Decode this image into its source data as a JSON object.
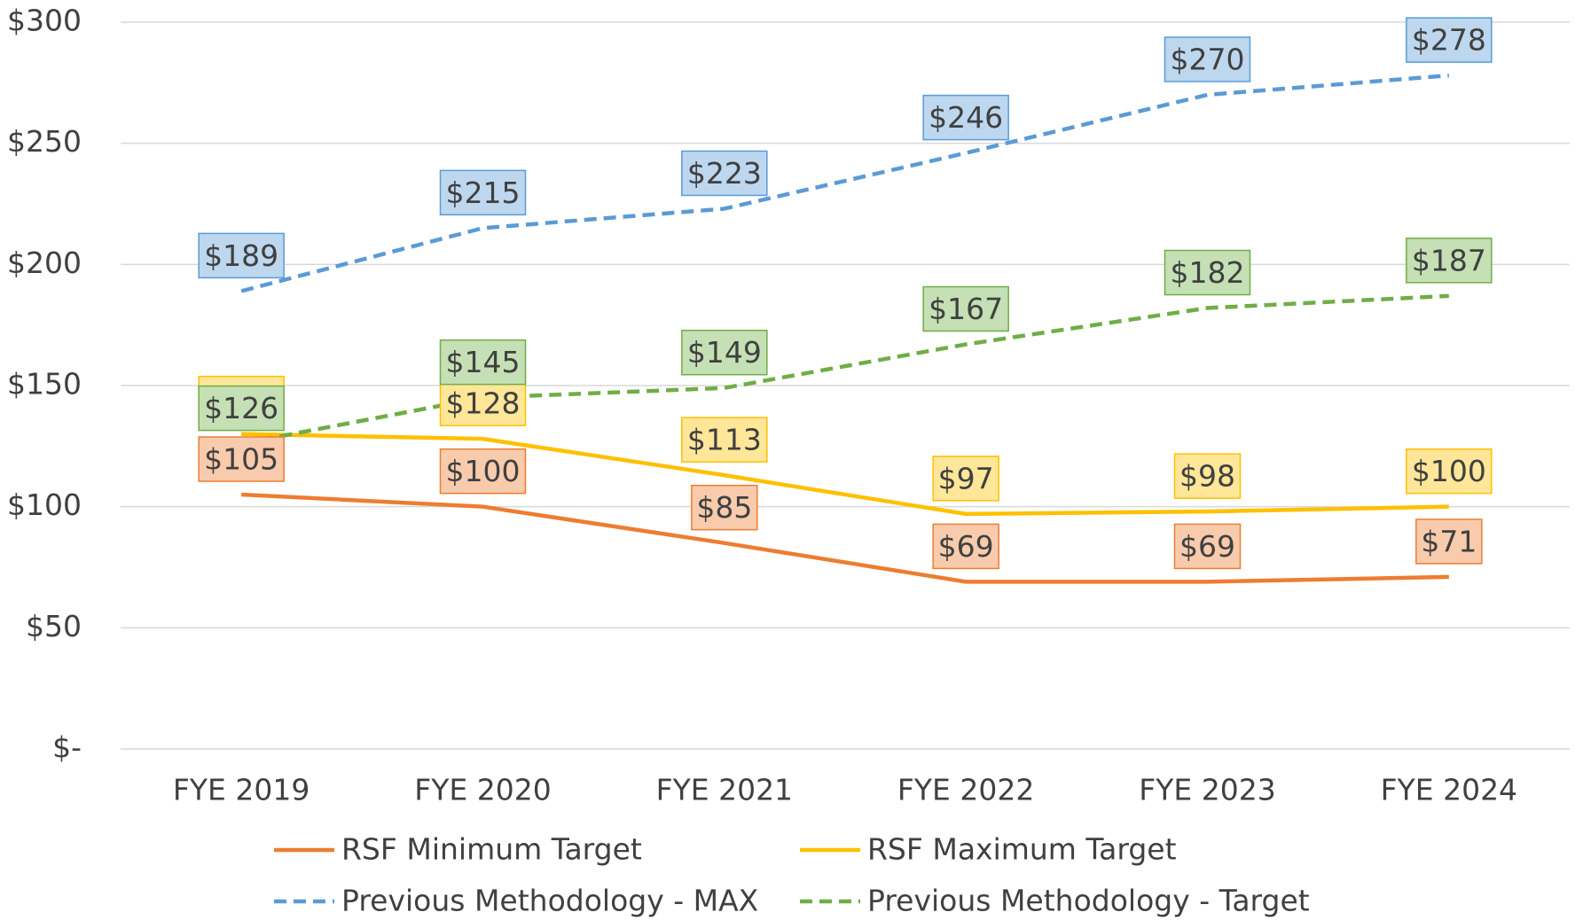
{
  "chart_data": {
    "type": "line",
    "categories": [
      "FYE 2019",
      "FYE 2020",
      "FYE 2021",
      "FYE 2022",
      "FYE 2023",
      "FYE 2024"
    ],
    "series": [
      {
        "name": "RSF Minimum Target",
        "color": "#ed7d31",
        "label_fill": "#f8cbad",
        "dashed": false,
        "values": [
          105,
          100,
          85,
          69,
          69,
          71
        ],
        "value_labels": [
          "$105",
          "$100",
          "$85",
          "$69",
          "$69",
          "$71"
        ]
      },
      {
        "name": "RSF Maximum Target",
        "color": "#ffc000",
        "label_fill": "#ffe699",
        "dashed": false,
        "values": [
          130,
          128,
          113,
          97,
          98,
          100
        ],
        "value_labels": [
          "$130",
          "$128",
          "$113",
          "$97",
          "$98",
          "$100"
        ]
      },
      {
        "name": "Previous Methodology - MAX",
        "color": "#5b9bd5",
        "label_fill": "#bdd7ee",
        "dashed": true,
        "values": [
          189,
          215,
          223,
          246,
          270,
          278
        ],
        "value_labels": [
          "$189",
          "$215",
          "$223",
          "$246",
          "$270",
          "$278"
        ]
      },
      {
        "name": "Previous Methodology - Target",
        "color": "#70ad47",
        "label_fill": "#c5e0b4",
        "dashed": true,
        "values": [
          126,
          145,
          149,
          167,
          182,
          187
        ],
        "value_labels": [
          "$126",
          "$145",
          "$149",
          "$167",
          "$182",
          "$187"
        ]
      }
    ],
    "ylim": [
      0,
      300
    ],
    "yticks": [
      {
        "value": 0,
        "label": "$-"
      },
      {
        "value": 50,
        "label": "$50"
      },
      {
        "value": 100,
        "label": "$100"
      },
      {
        "value": 150,
        "label": "$150"
      },
      {
        "value": 200,
        "label": "$200"
      },
      {
        "value": 250,
        "label": "$250"
      },
      {
        "value": 300,
        "label": "$300"
      }
    ],
    "grid": true,
    "legend": "bottom"
  }
}
